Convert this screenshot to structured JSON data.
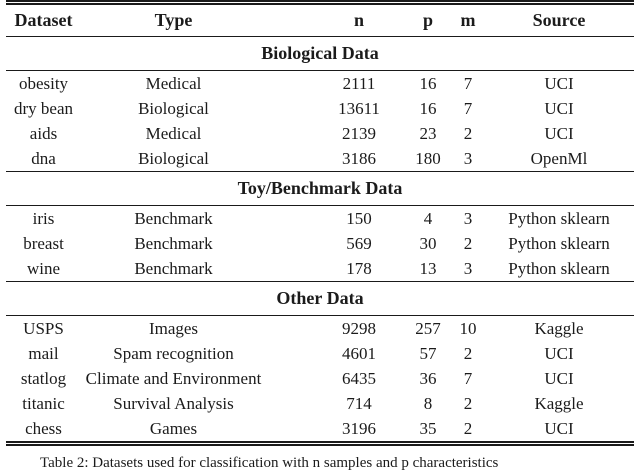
{
  "table": {
    "columns": [
      "Dataset",
      "Type",
      "n",
      "p",
      "m",
      "Source"
    ],
    "column_keys": [
      "dataset",
      "type",
      "n",
      "p",
      "m",
      "source"
    ],
    "sections": [
      {
        "title": "Biological Data",
        "rows": [
          [
            "obesity",
            "Medical",
            "2111",
            "16",
            "7",
            "UCI"
          ],
          [
            "dry bean",
            "Biological",
            "13611",
            "16",
            "7",
            "UCI"
          ],
          [
            "aids",
            "Medical",
            "2139",
            "23",
            "2",
            "UCI"
          ],
          [
            "dna",
            "Biological",
            "3186",
            "180",
            "3",
            "OpenMl"
          ]
        ]
      },
      {
        "title": "Toy/Benchmark Data",
        "rows": [
          [
            "iris",
            "Benchmark",
            "150",
            "4",
            "3",
            "Python sklearn"
          ],
          [
            "breast",
            "Benchmark",
            "569",
            "30",
            "2",
            "Python sklearn"
          ],
          [
            "wine",
            "Benchmark",
            "178",
            "13",
            "3",
            "Python sklearn"
          ]
        ]
      },
      {
        "title": "Other Data",
        "rows": [
          [
            "USPS",
            "Images",
            "9298",
            "257",
            "10",
            "Kaggle"
          ],
          [
            "mail",
            "Spam recognition",
            "4601",
            "57",
            "2",
            "UCI"
          ],
          [
            "statlog",
            "Climate and Environment",
            "6435",
            "36",
            "7",
            "UCI"
          ],
          [
            "titanic",
            "Survival Analysis",
            "714",
            "8",
            "2",
            "Kaggle"
          ],
          [
            "chess",
            "Games",
            "3196",
            "35",
            "2",
            "UCI"
          ]
        ]
      }
    ]
  },
  "caption": "Table 2: Datasets used for classification with n samples and p characteristics",
  "colors": {
    "text": "#1b1b1b",
    "rule": "#1a1a1a",
    "background": "#ffffff"
  }
}
